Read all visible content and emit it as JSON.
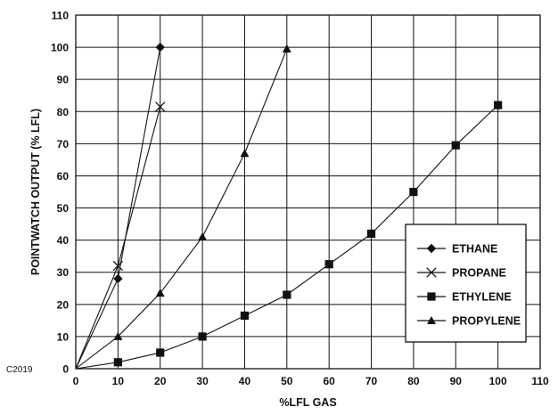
{
  "chart_data": {
    "type": "line",
    "xlabel": "%LFL GAS",
    "ylabel": "POINTWATCH OUTPUT (% LFL)",
    "xlim": [
      0,
      110
    ],
    "ylim": [
      0,
      110
    ],
    "xticks": [
      0,
      10,
      20,
      30,
      40,
      50,
      60,
      70,
      80,
      90,
      100,
      110
    ],
    "yticks": [
      0,
      10,
      20,
      30,
      40,
      50,
      60,
      70,
      80,
      90,
      100,
      110
    ],
    "grid": true,
    "legend_position": "bottom-right",
    "figure_code": "C2019",
    "series": [
      {
        "name": "ETHANE",
        "marker": "diamond",
        "x": [
          0,
          10,
          20
        ],
        "y": [
          0,
          28,
          100
        ]
      },
      {
        "name": "PROPANE",
        "marker": "x",
        "x": [
          0,
          10,
          20
        ],
        "y": [
          0,
          32,
          81.5
        ]
      },
      {
        "name": "ETHYLENE",
        "marker": "square",
        "x": [
          0,
          10,
          20,
          30,
          40,
          50,
          60,
          70,
          80,
          90,
          100
        ],
        "y": [
          0,
          2,
          5,
          10,
          16.5,
          23,
          32.5,
          42,
          55,
          69.5,
          82
        ]
      },
      {
        "name": "PROPYLENE",
        "marker": "triangle",
        "x": [
          0,
          10,
          20,
          30,
          40,
          50
        ],
        "y": [
          0,
          10,
          23.5,
          41,
          67,
          99.5
        ]
      }
    ]
  }
}
